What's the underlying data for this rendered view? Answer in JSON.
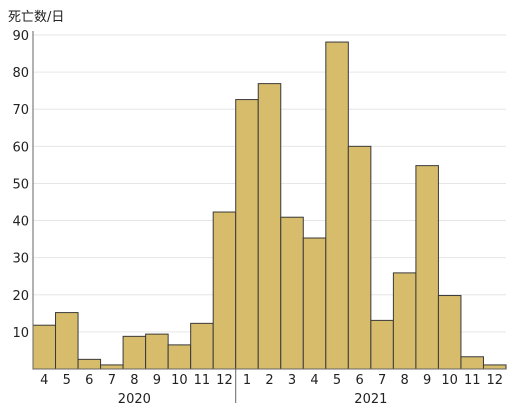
{
  "chart_data": {
    "type": "bar",
    "ylabel": "死亡数/日",
    "ylim": [
      0,
      90
    ],
    "yticks": [
      10,
      20,
      30,
      40,
      50,
      60,
      70,
      80,
      90
    ],
    "grid": true,
    "categories": [
      "4",
      "5",
      "6",
      "7",
      "8",
      "9",
      "10",
      "11",
      "12",
      "1",
      "2",
      "3",
      "4",
      "5",
      "6",
      "7",
      "8",
      "9",
      "10",
      "11",
      "12"
    ],
    "years": [
      {
        "label": "2020",
        "from": 0,
        "to": 8
      },
      {
        "label": "2021",
        "from": 9,
        "to": 20
      }
    ],
    "values": [
      11.8,
      15.2,
      2.6,
      1.1,
      8.8,
      9.4,
      6.5,
      12.3,
      42.3,
      72.6,
      76.9,
      40.9,
      35.3,
      88.1,
      60.0,
      13.1,
      25.9,
      54.8,
      19.8,
      3.3,
      1.1
    ],
    "colors": {
      "bar": "#d6bc6b",
      "bar_edge": "#3a3a3a",
      "grid": "#e6e6e6",
      "axis": "#666666",
      "text": "#222222"
    }
  }
}
